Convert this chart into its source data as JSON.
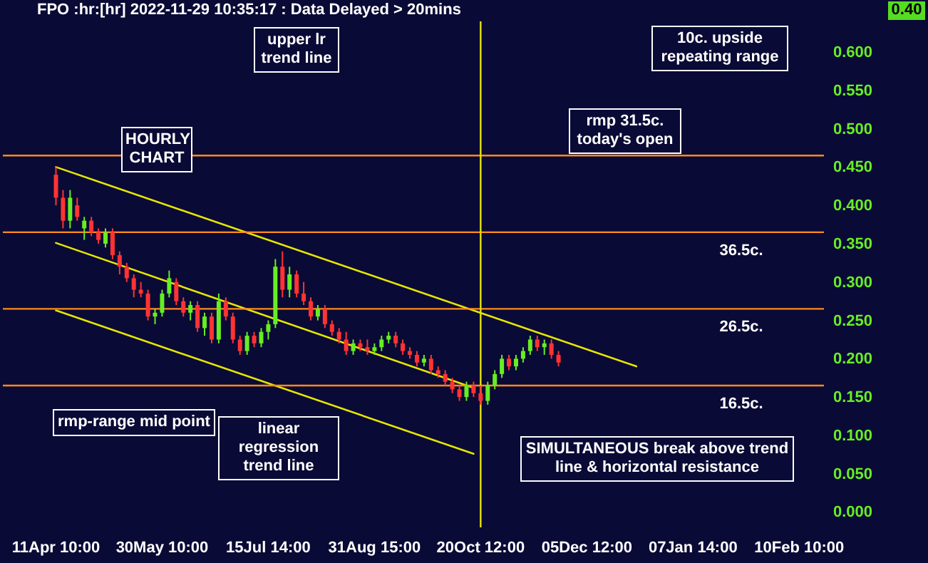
{
  "chart_data": {
    "type": "candlestick",
    "title": "FPO :hr:[hr] 2022-11-29 10:35:17 : Data Delayed > 20mins",
    "categories": [
      null,
      null,
      null,
      null,
      null,
      null,
      null,
      "11Apr 10:00",
      null,
      null,
      null,
      null,
      null,
      null,
      null,
      null,
      null,
      null,
      null,
      null,
      null,
      null,
      "30May 10:00",
      null,
      null,
      null,
      null,
      null,
      null,
      null,
      null,
      null,
      null,
      null,
      null,
      null,
      null,
      "15Jul 14:00",
      null,
      null,
      null,
      null,
      null,
      null,
      null,
      null,
      null,
      null,
      null,
      null,
      null,
      null,
      "31Aug 15:00",
      null,
      null,
      null,
      null,
      null,
      null,
      null,
      null,
      null,
      null,
      null,
      null,
      null,
      null,
      "20Oct 12:00",
      null,
      null,
      null,
      null,
      null,
      null,
      null,
      null,
      null,
      null,
      null,
      null,
      null,
      null,
      "05Dec 12:00",
      null,
      null,
      null,
      null,
      null,
      null,
      null,
      null,
      null,
      null,
      null,
      null,
      null,
      null,
      "07Jan 14:00",
      null,
      null,
      null,
      null,
      null,
      null,
      null,
      null,
      null,
      null,
      null,
      null,
      null,
      null,
      "10Feb 10:00",
      null,
      null,
      null
    ],
    "ohlc": [
      null,
      null,
      null,
      null,
      null,
      null,
      null,
      [
        0.44,
        0.45,
        0.4,
        0.41
      ],
      [
        0.41,
        0.42,
        0.37,
        0.38
      ],
      [
        0.38,
        0.42,
        0.37,
        0.41
      ],
      [
        0.4,
        0.41,
        0.38,
        0.385
      ],
      [
        0.37,
        0.385,
        0.355,
        0.38
      ],
      [
        0.38,
        0.385,
        0.36,
        0.365
      ],
      [
        0.365,
        0.37,
        0.35,
        0.355
      ],
      [
        0.35,
        0.37,
        0.345,
        0.365
      ],
      [
        0.365,
        0.37,
        0.33,
        0.335
      ],
      [
        0.335,
        0.34,
        0.31,
        0.32
      ],
      [
        0.32,
        0.325,
        0.3,
        0.305
      ],
      [
        0.305,
        0.31,
        0.28,
        0.29
      ],
      [
        0.29,
        0.3,
        0.28,
        0.285
      ],
      [
        0.285,
        0.29,
        0.25,
        0.255
      ],
      [
        0.255,
        0.265,
        0.245,
        0.26
      ],
      [
        0.26,
        0.29,
        0.255,
        0.285
      ],
      [
        0.285,
        0.315,
        0.28,
        0.305
      ],
      [
        0.3,
        0.305,
        0.27,
        0.275
      ],
      [
        0.275,
        0.28,
        0.255,
        0.26
      ],
      [
        0.26,
        0.275,
        0.25,
        0.27
      ],
      [
        0.27,
        0.275,
        0.235,
        0.24
      ],
      [
        0.24,
        0.26,
        0.23,
        0.255
      ],
      [
        0.255,
        0.26,
        0.22,
        0.225
      ],
      [
        0.225,
        0.285,
        0.22,
        0.275
      ],
      [
        0.275,
        0.28,
        0.25,
        0.255
      ],
      [
        0.255,
        0.26,
        0.22,
        0.225
      ],
      [
        0.225,
        0.23,
        0.205,
        0.21
      ],
      [
        0.21,
        0.235,
        0.205,
        0.23
      ],
      [
        0.23,
        0.235,
        0.215,
        0.22
      ],
      [
        0.22,
        0.24,
        0.215,
        0.235
      ],
      [
        0.235,
        0.25,
        0.225,
        0.245
      ],
      [
        0.245,
        0.33,
        0.24,
        0.32
      ],
      [
        0.32,
        0.34,
        0.28,
        0.29
      ],
      [
        0.29,
        0.32,
        0.28,
        0.31
      ],
      [
        0.31,
        0.315,
        0.28,
        0.285
      ],
      [
        0.285,
        0.3,
        0.27,
        0.275
      ],
      [
        0.275,
        0.28,
        0.25,
        0.255
      ],
      [
        0.255,
        0.27,
        0.25,
        0.265
      ],
      [
        0.265,
        0.27,
        0.24,
        0.245
      ],
      [
        0.245,
        0.25,
        0.23,
        0.235
      ],
      [
        0.235,
        0.24,
        0.22,
        0.225
      ],
      [
        0.225,
        0.235,
        0.205,
        0.21
      ],
      [
        0.21,
        0.225,
        0.205,
        0.22
      ],
      [
        0.22,
        0.225,
        0.21,
        0.215
      ],
      [
        0.215,
        0.225,
        0.205,
        0.21
      ],
      [
        0.21,
        0.22,
        0.205,
        0.215
      ],
      [
        0.215,
        0.23,
        0.21,
        0.225
      ],
      [
        0.225,
        0.235,
        0.22,
        0.23
      ],
      [
        0.23,
        0.235,
        0.215,
        0.22
      ],
      [
        0.22,
        0.225,
        0.205,
        0.21
      ],
      [
        0.21,
        0.215,
        0.2,
        0.205
      ],
      [
        0.205,
        0.21,
        0.19,
        0.195
      ],
      [
        0.195,
        0.205,
        0.19,
        0.2
      ],
      [
        0.2,
        0.205,
        0.18,
        0.185
      ],
      [
        0.185,
        0.19,
        0.175,
        0.18
      ],
      [
        0.18,
        0.185,
        0.165,
        0.17
      ],
      [
        0.17,
        0.175,
        0.155,
        0.16
      ],
      [
        0.16,
        0.165,
        0.145,
        0.15
      ],
      [
        0.15,
        0.17,
        0.145,
        0.165
      ],
      [
        0.165,
        0.17,
        0.15,
        0.155
      ],
      [
        0.155,
        0.165,
        0.14,
        0.145
      ],
      [
        0.145,
        0.17,
        0.14,
        0.165
      ],
      [
        0.165,
        0.185,
        0.16,
        0.18
      ],
      [
        0.18,
        0.205,
        0.175,
        0.2
      ],
      [
        0.2,
        0.205,
        0.185,
        0.19
      ],
      [
        0.19,
        0.205,
        0.185,
        0.2
      ],
      [
        0.2,
        0.215,
        0.195,
        0.21
      ],
      [
        0.21,
        0.23,
        0.205,
        0.225
      ],
      [
        0.225,
        0.23,
        0.21,
        0.215
      ],
      [
        0.215,
        0.225,
        0.205,
        0.22
      ],
      [
        0.22,
        0.225,
        0.2,
        0.205
      ],
      [
        0.205,
        0.21,
        0.19,
        0.195
      ],
      null,
      null,
      null,
      null,
      null,
      null,
      null,
      null,
      null,
      null,
      null,
      null,
      null,
      null,
      null,
      null,
      null,
      null,
      null,
      null,
      null,
      null,
      null,
      null,
      null,
      null,
      null,
      null,
      null,
      null,
      null,
      null,
      null,
      null,
      null,
      null,
      null
    ],
    "colors": [
      null,
      null,
      null,
      null,
      null,
      null,
      null,
      "#ff3333",
      "#ff3333",
      "#66ee22",
      "#ff3333",
      "#66ee22",
      "#ff3333",
      "#ff3333",
      "#66ee22",
      "#ff3333",
      "#ff3333",
      "#ff3333",
      "#ff3333",
      "#ff3333",
      "#ff3333",
      "#66ee22",
      "#66ee22",
      "#66ee22",
      "#ff3333",
      "#ff3333",
      "#66ee22",
      "#ff3333",
      "#66ee22",
      "#ff3333",
      "#66ee22",
      "#ff3333",
      "#ff3333",
      "#ff3333",
      "#66ee22",
      "#ff3333",
      "#66ee22",
      "#66ee22",
      "#66ee22",
      "#ff3333",
      "#66ee22",
      "#ff3333",
      "#ff3333",
      "#ff3333",
      "#66ee22",
      "#ff3333",
      "#ff3333",
      "#ff3333",
      "#ff3333",
      "#66ee22",
      "#ff3333",
      "#ff3333",
      "#66ee22",
      "#66ee22",
      "#66ee22",
      "#ff3333",
      "#ff3333",
      "#ff3333",
      "#ff3333",
      "#66ee22",
      "#ff3333",
      "#ff3333",
      "#ff3333",
      "#ff3333",
      "#ff3333",
      "#66ee22",
      "#ff3333",
      "#ff3333",
      "#66ee22",
      "#66ee22",
      "#66ee22",
      "#ff3333",
      "#66ee22",
      "#66ee22",
      "#66ee22",
      "#ff3333",
      "#66ee22",
      "#ff3333",
      "#ff3333",
      null,
      null,
      null,
      null,
      null,
      null,
      null,
      null,
      null,
      null,
      null,
      null,
      null,
      null,
      null,
      null,
      null,
      null,
      null,
      null,
      null,
      null,
      null,
      null,
      null,
      null,
      null,
      null,
      null,
      null,
      null,
      null,
      null,
      null,
      null,
      null,
      null
    ],
    "series": [
      {
        "type": "line",
        "color": "#e6e600",
        "values": [
          null,
          null,
          null,
          null,
          null,
          null,
          null,
          0.45,
          null,
          null,
          null,
          null,
          null,
          null,
          null,
          null,
          null,
          null,
          null,
          null,
          null,
          null,
          null,
          null,
          null,
          null,
          null,
          null,
          null,
          null,
          null,
          null,
          null,
          null,
          null,
          null,
          null,
          null,
          null,
          null,
          null,
          null,
          null,
          null,
          null,
          null,
          null,
          null,
          null,
          null,
          null,
          null,
          null,
          null,
          null,
          null,
          null,
          null,
          null,
          null,
          null,
          null,
          null,
          null,
          null,
          null,
          null,
          null,
          null,
          null,
          null,
          null,
          null,
          null,
          null,
          null,
          null,
          null,
          null,
          null,
          null,
          null,
          null,
          null,
          null,
          null,
          null,
          null,
          null,
          0.19,
          null,
          null,
          null,
          null,
          null,
          null,
          null,
          null,
          null,
          null,
          null,
          null,
          null,
          null,
          null,
          null,
          null,
          null,
          null,
          null,
          null,
          null,
          null,
          null,
          null,
          null
        ]
      },
      {
        "type": "line",
        "color": "#e6e600",
        "values": [
          null,
          null,
          null,
          null,
          null,
          null,
          null,
          0.351,
          null,
          null,
          null,
          null,
          null,
          null,
          null,
          null,
          null,
          null,
          null,
          null,
          null,
          null,
          null,
          null,
          null,
          null,
          null,
          null,
          null,
          null,
          null,
          null,
          null,
          null,
          null,
          null,
          null,
          null,
          null,
          null,
          null,
          null,
          null,
          null,
          null,
          null,
          null,
          null,
          null,
          null,
          null,
          null,
          null,
          null,
          null,
          null,
          null,
          null,
          null,
          null,
          null,
          null,
          null,
          null,
          null,
          null,
          0.162,
          null,
          null,
          null,
          null,
          null,
          null,
          null,
          null,
          null,
          null,
          null,
          null,
          null,
          null,
          null,
          null,
          null,
          null,
          null,
          null,
          null,
          null,
          null,
          null,
          null,
          null,
          null,
          null,
          null,
          null,
          null,
          null,
          null,
          null,
          null,
          null,
          null,
          null,
          null,
          null,
          null,
          null,
          null,
          null,
          null,
          null,
          null,
          null,
          null
        ]
      },
      {
        "type": "line",
        "color": "#e6e600",
        "values": [
          null,
          null,
          null,
          null,
          null,
          null,
          null,
          0.263,
          null,
          null,
          null,
          null,
          null,
          null,
          null,
          null,
          null,
          null,
          null,
          null,
          null,
          null,
          null,
          null,
          null,
          null,
          null,
          null,
          null,
          null,
          null,
          null,
          null,
          null,
          null,
          null,
          null,
          null,
          null,
          null,
          null,
          null,
          null,
          null,
          null,
          null,
          null,
          null,
          null,
          null,
          null,
          null,
          null,
          null,
          null,
          null,
          null,
          null,
          null,
          null,
          null,
          null,
          null,
          null,
          null,
          null,
          0.076,
          null,
          null,
          null,
          null,
          null,
          null,
          null,
          null,
          null,
          null,
          null,
          null,
          null,
          null,
          null,
          null,
          null,
          null,
          null,
          null,
          null,
          null,
          null,
          null,
          null,
          null,
          null,
          null,
          null,
          null,
          null,
          null,
          null,
          null,
          null,
          null,
          null,
          null,
          null,
          null,
          null,
          null,
          null,
          null,
          null,
          null,
          null,
          null,
          null
        ]
      }
    ],
    "ylim": [
      -0.02,
      0.64
    ],
    "yticks": [
      {
        "value": 0,
        "label": "0.000"
      },
      {
        "value": 0.05,
        "label": "0.050"
      },
      {
        "value": 0.1,
        "label": "0.100"
      },
      {
        "value": 0.15,
        "label": "0.150"
      },
      {
        "value": 0.2,
        "label": "0.200"
      },
      {
        "value": 0.25,
        "label": "0.250"
      },
      {
        "value": 0.3,
        "label": "0.300"
      },
      {
        "value": 0.35,
        "label": "0.350"
      },
      {
        "value": 0.4,
        "label": "0.400"
      },
      {
        "value": 0.45,
        "label": "0.450"
      },
      {
        "value": 0.5,
        "label": "0.500"
      },
      {
        "value": 0.55,
        "label": "0.550"
      },
      {
        "value": 0.6,
        "label": "0.600"
      }
    ],
    "ref_lines": [
      {
        "axis": "y",
        "value": 0.465,
        "color": "#ff8c1a"
      },
      {
        "axis": "y",
        "value": 0.365,
        "label": "36.5c.",
        "color": "#ff8c1a"
      },
      {
        "axis": "y",
        "value": 0.265,
        "label": "26.5c.",
        "color": "#ff8c1a"
      },
      {
        "axis": "y",
        "value": 0.165,
        "label": "16.5c.",
        "color": "#ff8c1a"
      },
      {
        "axis": "x",
        "value": "20Oct 12:00",
        "color": "#e6e600"
      }
    ],
    "annotations": [
      "HOURLY CHART",
      "upper lr trend line",
      "10c. upside repeating range",
      "rmp 31.5c. today's open",
      "rmp-range mid point",
      "linear regression trend line",
      "SIMULTANEOUS break above trend line & horizontal resistance",
      "0.40"
    ]
  }
}
